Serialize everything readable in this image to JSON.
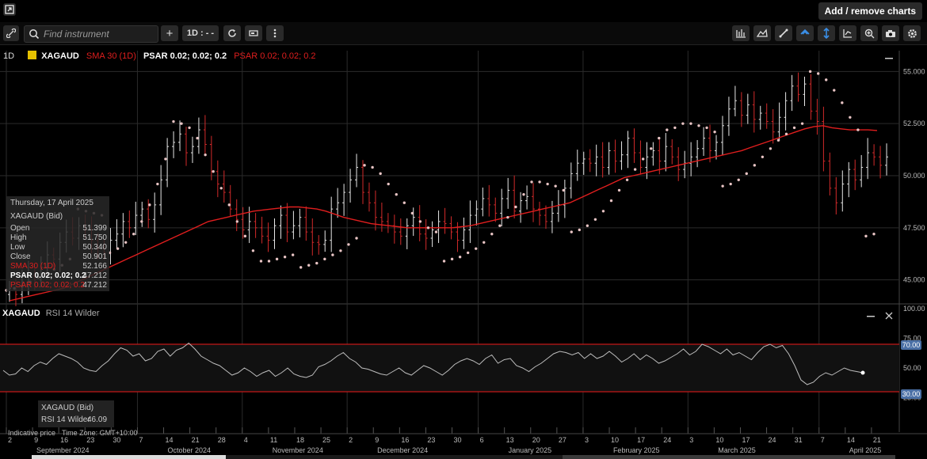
{
  "topbar": {
    "add_remove_label": "Add / remove charts"
  },
  "toolbar": {
    "search_placeholder": "Find instrument",
    "interval_label": "1D : - -"
  },
  "legend": {
    "interval": "1D",
    "symbol": "XAGAUD",
    "sma": "SMA 30 (1D)",
    "psar1": "PSAR 0.02; 0.02; 0.2",
    "psar2": "PSAR 0.02; 0.02; 0.2"
  },
  "tooltip": {
    "date": "Thursday, 17 April 2025",
    "symbol": "XAGAUD (Bid)",
    "rows": [
      {
        "label": "Open",
        "value": "51.399"
      },
      {
        "label": "High",
        "value": "51.750"
      },
      {
        "label": "Low",
        "value": "50.340"
      },
      {
        "label": "Close",
        "value": "50.901"
      },
      {
        "label": "SMA 30 (1D)",
        "value": "52.166"
      },
      {
        "label": "PSAR 0.02; 0.02; 0.2",
        "value": "47.212"
      },
      {
        "label": "PSAR 0.02; 0.02; 0.2",
        "value": "47.212"
      }
    ]
  },
  "rsi_panel": {
    "title_symbol": "XAGAUD",
    "title_indicator": "RSI 14 Wilder",
    "tooltip_symbol": "XAGAUD (Bid)",
    "tooltip_value_label": "RSI 14 Wilder",
    "tooltip_value": "46.09",
    "level_high_label": "70.00",
    "level_low_label": "30.00"
  },
  "footer": {
    "indicative": "Indicative price",
    "timezone": "Time Zone: GMT+10:00"
  },
  "colors": {
    "up": "#e8e8e8",
    "down": "#d22a2a",
    "sma": "#e01e1e",
    "psar": "#e8c4c4",
    "grid": "#2b2b2b",
    "badge": "#4a6fa5"
  },
  "chart_data": [
    {
      "type": "candlestick",
      "symbol": "XAGAUD",
      "ylim": [
        44,
        56
      ],
      "y_ticks": [
        "55.000",
        "52.500",
        "50.000",
        "47.500",
        "45.000"
      ],
      "x_ticks": [
        "2",
        "9",
        "16",
        "23",
        "30",
        "7",
        "14",
        "21",
        "28",
        "4",
        "11",
        "18",
        "25",
        "2",
        "9",
        "16",
        "23",
        "30",
        "6",
        "13",
        "20",
        "27",
        "3",
        "10",
        "17",
        "24",
        "3",
        "10",
        "17",
        "24",
        "31",
        "7",
        "14",
        "21"
      ],
      "x_months": [
        "September 2024",
        "October 2024",
        "November 2024",
        "December 2024",
        "January 2025",
        "February 2025",
        "March 2025",
        "April 2025"
      ],
      "close_series": [
        44.6,
        44.3,
        44.9,
        45.2,
        45.0,
        45.6,
        46.2,
        46.0,
        46.8,
        47.3,
        47.0,
        47.6,
        47.4,
        46.9,
        46.5,
        46.3,
        46.9,
        47.2,
        47.8,
        47.5,
        48.1,
        48.4,
        47.9,
        48.6,
        49.8,
        51.4,
        51.6,
        52.0,
        51.1,
        51.4,
        52.2,
        51.5,
        50.2,
        49.6,
        49.2,
        48.4,
        47.9,
        47.4,
        47.8,
        47.5,
        47.1,
        46.9,
        47.6,
        48.1,
        47.3,
        47.6,
        48.0,
        47.3,
        46.8,
        46.7,
        46.9,
        48.4,
        48.7,
        49.2,
        49.8,
        50.4,
        49.2,
        48.7,
        48.0,
        47.8,
        47.6,
        47.3,
        47.1,
        47.6,
        48.0,
        47.2,
        47.0,
        47.4,
        47.8,
        47.7,
        47.3,
        46.9,
        47.4,
        48.1,
        48.4,
        48.9,
        48.6,
        48.2,
        48.9,
        49.3,
        48.3,
        48.8,
        49.0,
        48.4,
        48.1,
        47.8,
        48.2,
        48.6,
        49.4,
        50.1,
        50.6,
        50.8,
        50.6,
        50.9,
        50.4,
        51.2,
        50.7,
        51.0,
        51.8,
        51.1,
        50.4,
        50.9,
        51.2,
        50.7,
        51.4,
        50.9,
        50.3,
        50.6,
        50.9,
        51.3,
        51.8,
        51.2,
        51.6,
        52.4,
        53.2,
        53.6,
        52.9,
        53.4,
        52.7,
        53.0,
        52.6,
        52.1,
        52.8,
        53.6,
        54.3,
        53.9,
        54.4,
        53.1,
        52.6,
        50.7,
        49.4,
        48.7,
        49.6,
        50.3,
        49.8,
        50.4,
        51.1,
        50.9,
        50.5,
        50.9
      ],
      "sma_series": [
        44.0,
        44.1,
        44.2,
        44.3,
        44.4,
        44.5,
        44.6,
        44.8,
        45.0,
        45.2,
        45.4,
        45.6,
        45.8,
        46.0,
        46.2,
        46.4,
        46.6,
        46.8,
        47.0,
        47.2,
        47.4,
        47.6,
        47.8,
        47.9,
        48.0,
        48.1,
        48.2,
        48.3,
        48.35,
        48.4,
        48.45,
        48.5,
        48.5,
        48.45,
        48.4,
        48.3,
        48.15,
        48.0,
        47.9,
        47.8,
        47.7,
        47.65,
        47.6,
        47.55,
        47.5,
        47.5,
        47.5,
        47.5,
        47.5,
        47.5,
        47.55,
        47.6,
        47.7,
        47.8,
        47.9,
        48.0,
        48.1,
        48.2,
        48.3,
        48.4,
        48.5,
        48.6,
        48.7,
        48.9,
        49.1,
        49.3,
        49.5,
        49.7,
        49.9,
        50.0,
        50.1,
        50.2,
        50.3,
        50.4,
        50.5,
        50.6,
        50.7,
        50.8,
        50.9,
        51.0,
        51.1,
        51.2,
        51.35,
        51.5,
        51.65,
        51.8,
        51.95,
        52.1,
        52.25,
        52.35,
        52.4,
        52.3,
        52.25,
        52.2,
        52.2,
        52.2,
        52.17
      ],
      "psar_series": [
        44.5,
        44.6,
        44.7,
        44.9,
        45.1,
        45.3,
        45.5,
        45.7,
        46.0,
        48.4,
        48.3,
        48.2,
        48.1,
        46.3,
        46.5,
        46.8,
        47.2,
        47.8,
        48.6,
        49.6,
        50.8,
        52.6,
        52.5,
        52.3,
        51.8,
        51.0,
        50.2,
        49.4,
        48.6,
        47.8,
        47.1,
        46.4,
        45.9,
        45.9,
        46.0,
        46.1,
        46.2,
        45.6,
        45.7,
        45.8,
        46.0,
        46.2,
        46.4,
        46.7,
        47.0,
        50.5,
        50.4,
        50.1,
        49.6,
        49.1,
        48.7,
        48.2,
        47.8,
        47.5,
        47.3,
        45.9,
        46.0,
        46.1,
        46.3,
        46.5,
        46.8,
        47.2,
        47.6,
        48.0,
        48.5,
        49.1,
        49.7,
        49.7,
        49.6,
        49.5,
        49.3,
        47.3,
        47.4,
        47.6,
        47.9,
        48.3,
        48.8,
        49.3,
        49.8,
        50.3,
        50.8,
        51.3,
        51.8,
        52.2,
        52.3,
        52.5,
        52.5,
        52.4,
        52.3,
        52.1,
        49.5,
        49.6,
        49.8,
        50.1,
        50.5,
        50.9,
        51.3,
        51.7,
        52.0,
        52.3,
        52.5,
        55.0,
        54.9,
        54.6,
        54.1,
        53.5,
        52.8,
        52.2,
        47.1,
        47.2
      ]
    },
    {
      "type": "line",
      "name": "RSI 14 Wilder",
      "ylim": [
        0,
        100
      ],
      "y_ticks": [
        "100.00",
        "75.00",
        "50.00",
        "25.00"
      ],
      "levels": [
        70,
        30
      ],
      "values": [
        48,
        44,
        45,
        50,
        47,
        52,
        55,
        53,
        58,
        62,
        60,
        58,
        55,
        50,
        48,
        47,
        52,
        56,
        62,
        67,
        65,
        60,
        62,
        56,
        58,
        64,
        66,
        60,
        65,
        67,
        71,
        66,
        60,
        57,
        54,
        52,
        48,
        44,
        46,
        50,
        47,
        43,
        46,
        48,
        43,
        46,
        50,
        45,
        43,
        42,
        44,
        51,
        53,
        56,
        60,
        63,
        58,
        55,
        50,
        49,
        47,
        45,
        44,
        47,
        50,
        46,
        44,
        48,
        52,
        50,
        47,
        44,
        48,
        53,
        56,
        58,
        56,
        53,
        58,
        61,
        54,
        57,
        58,
        52,
        50,
        47,
        51,
        54,
        58,
        62,
        64,
        63,
        61,
        63,
        58,
        62,
        58,
        60,
        64,
        60,
        55,
        58,
        62,
        57,
        61,
        58,
        54,
        56,
        59,
        62,
        66,
        61,
        64,
        70,
        68,
        65,
        62,
        66,
        61,
        63,
        60,
        57,
        63,
        68,
        70,
        67,
        69,
        62,
        52,
        40,
        36,
        38,
        43,
        46,
        44,
        47,
        50,
        48,
        47,
        46
      ]
    }
  ]
}
